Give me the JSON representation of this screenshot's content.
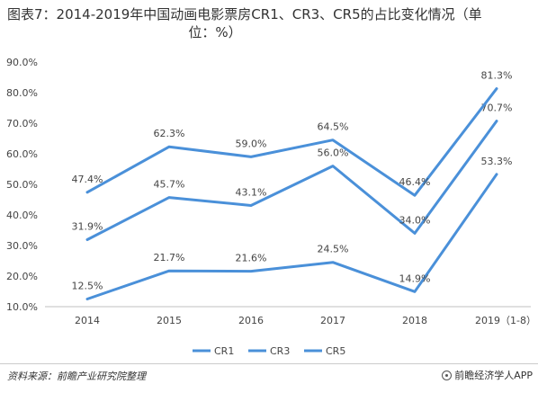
{
  "title_line1": "图表7：2014-2019年中国动画电影票房CR1、CR3、CR5的占比变化情况（单",
  "title_line2": "位：%）",
  "footer": {
    "source": "资料来源：前瞻产业研究院整理",
    "brand": "前瞻经济学人APP",
    "brand_icon": "circle-logo-icon"
  },
  "colors": {
    "series": "#4a90d9",
    "axis": "#bfbfbf"
  },
  "chart_data": {
    "type": "line",
    "categories": [
      "2014",
      "2015",
      "2016",
      "2017",
      "2018",
      "2019（1-8）"
    ],
    "y_ticks": [
      "90.0%",
      "80.0%",
      "70.0%",
      "60.0%",
      "50.0%",
      "40.0%",
      "30.0%",
      "20.0%",
      "10.0%"
    ],
    "ylim": [
      10,
      90
    ],
    "grid": false,
    "legend_position": "bottom",
    "series": [
      {
        "name": "CR1",
        "values": [
          12.5,
          21.7,
          21.6,
          24.5,
          14.9,
          53.3
        ],
        "labels": [
          "12.5%",
          "21.7%",
          "21.6%",
          "24.5%",
          "14.9%",
          "53.3%"
        ]
      },
      {
        "name": "CR3",
        "values": [
          31.9,
          45.7,
          43.1,
          56.0,
          34.0,
          70.7
        ],
        "labels": [
          "31.9%",
          "45.7%",
          "43.1%",
          "56.0%",
          "34.0%",
          "70.7%"
        ]
      },
      {
        "name": "CR5",
        "values": [
          47.4,
          62.3,
          59.0,
          64.5,
          46.4,
          81.3
        ],
        "labels": [
          "47.4%",
          "62.3%",
          "59.0%",
          "64.5%",
          "46.4%",
          "81.3%"
        ]
      }
    ]
  }
}
